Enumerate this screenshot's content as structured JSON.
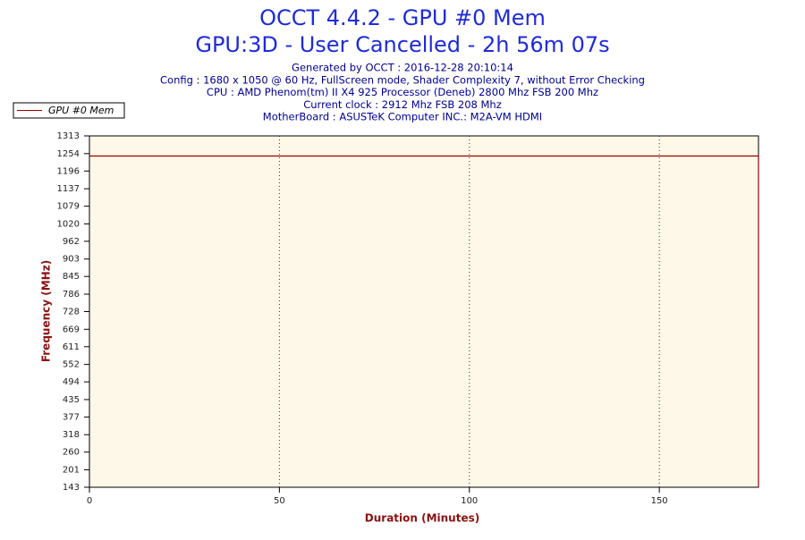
{
  "chart_data": {
    "type": "line",
    "title": "OCCT 4.4.2 - GPU #0 Mem",
    "subtitle": "GPU:3D - User Cancelled - 2h 56m 07s",
    "info": [
      "Generated by OCCT : 2016-12-28 20:10:14",
      "Config : 1680 x 1050 @ 60 Hz, FullScreen mode, Shader Complexity 7, without Error Checking",
      "CPU : AMD Phenom(tm) II X4 925 Processor (Deneb) 2800 Mhz FSB 200 Mhz",
      "Current clock : 2912 Mhz FSB 208 Mhz",
      "MotherBoard : ASUSTeK Computer INC.: M2A-VM HDMI"
    ],
    "x_label": "Duration (Minutes)",
    "y_label": "Frequency (MHz)",
    "x": [
      0,
      176.1,
      176.1
    ],
    "series": [
      {
        "name": "GPU #0 Mem",
        "color": "#9b0000",
        "values": [
          1246,
          1246,
          143
        ]
      }
    ],
    "xlim": [
      0,
      176.1
    ],
    "xticks": [
      0,
      50,
      100,
      150
    ],
    "ylim": [
      143,
      1313
    ],
    "yticks": [
      143,
      201,
      260,
      318,
      377,
      435,
      494,
      552,
      611,
      669,
      728,
      786,
      845,
      903,
      962,
      1020,
      1079,
      1137,
      1196,
      1254,
      1313
    ],
    "grid": "x",
    "plot_background": "#fdf8e8"
  }
}
